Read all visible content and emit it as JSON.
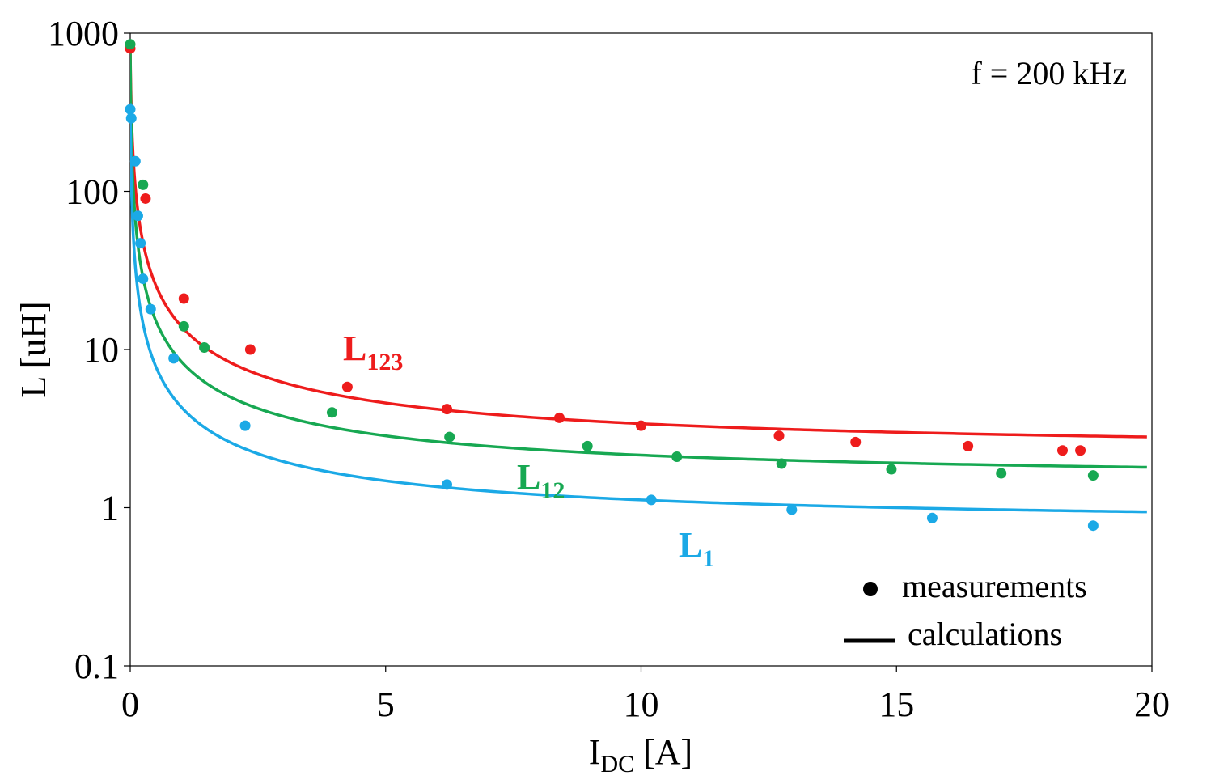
{
  "chart_data": {
    "type": "scatter",
    "title": "",
    "annotation": "f = 200 kHz",
    "xlabel": {
      "main": "I",
      "sub": "DC",
      "unit": " [A]"
    },
    "ylabel": "L [uH]",
    "xlim": [
      0,
      20
    ],
    "ylim": [
      0.1,
      1000
    ],
    "yscale": "log",
    "x_ticks": [
      0,
      5,
      10,
      15,
      20
    ],
    "x_tick_labels": [
      "0",
      "5",
      "10",
      "15",
      "20"
    ],
    "y_ticks": [
      0.1,
      1,
      10,
      100,
      1000
    ],
    "y_tick_labels": [
      "0.1",
      "1",
      "10",
      "100",
      "1000"
    ],
    "legend": {
      "position": "bottom-right",
      "items": [
        {
          "marker": "dot",
          "label": "measurements"
        },
        {
          "marker": "line",
          "label": "calculations"
        }
      ]
    },
    "series": [
      {
        "name": "L123",
        "label_main": "L",
        "label_sub": "123",
        "color": "#ee1c1c",
        "measurements": {
          "x": [
            0.0,
            0.3,
            1.05,
            2.35,
            4.25,
            6.2,
            8.4,
            10.0,
            12.7,
            14.2,
            16.4,
            18.25,
            18.6
          ],
          "y": [
            800,
            90,
            21,
            10,
            5.8,
            4.2,
            3.7,
            3.3,
            2.85,
            2.6,
            2.45,
            2.3,
            2.3
          ]
        },
        "calculation": {
          "model": "L = Linf + A / (I + c)",
          "Linf": 2.2,
          "A": 12.0,
          "c": 0.015
        }
      },
      {
        "name": "L12",
        "label_main": "L",
        "label_sub": "12",
        "color": "#17a852",
        "measurements": {
          "x": [
            0.0,
            0.25,
            1.05,
            1.45,
            3.95,
            6.25,
            8.95,
            10.7,
            12.75,
            14.9,
            17.05,
            18.85
          ],
          "y": [
            850,
            110,
            14,
            10.3,
            4.0,
            2.8,
            2.45,
            2.1,
            1.9,
            1.75,
            1.65,
            1.6
          ]
        },
        "calculation": {
          "model": "L = Linf + A / (I + c)",
          "Linf": 1.45,
          "A": 7.0,
          "c": 0.008
        }
      },
      {
        "name": "L1",
        "label_main": "L",
        "label_sub": "1",
        "color": "#1ba9e6",
        "measurements": {
          "x": [
            0.0,
            0.02,
            0.1,
            0.15,
            0.2,
            0.25,
            0.4,
            0.85,
            2.25,
            6.2,
            10.2,
            12.95,
            15.7,
            18.85
          ],
          "y": [
            330,
            290,
            155,
            70,
            47,
            28,
            18,
            8.8,
            3.3,
            1.4,
            1.12,
            0.97,
            0.86,
            0.77
          ]
        },
        "calculation": {
          "model": "L = Linf + A / (I + c)",
          "Linf": 0.76,
          "A": 3.6,
          "c": 0.01
        }
      }
    ]
  }
}
